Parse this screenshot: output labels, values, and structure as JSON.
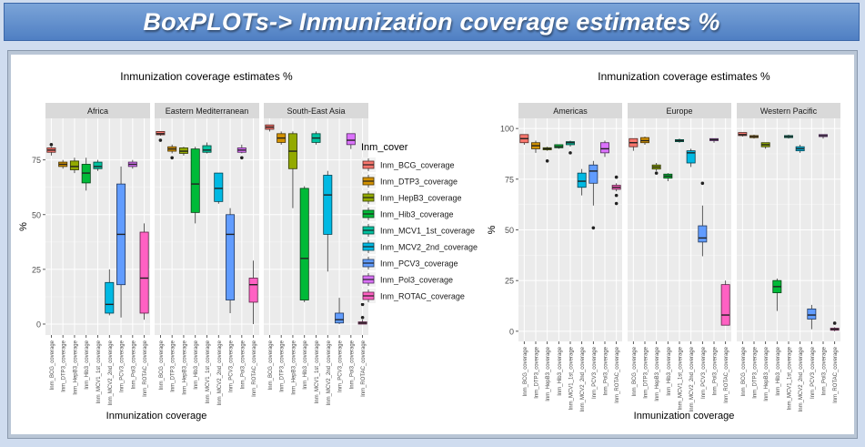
{
  "banner": {
    "title": "BoxPLOTs-> Inmunization coverage estimates %"
  },
  "colors": {
    "Inm_BCG_coverage": "#f8766d",
    "Inm_DTP3_coverage": "#d39200",
    "Inm_HepB3_coverage": "#93aa00",
    "Inm_Hib3_coverage": "#00ba38",
    "Inm_MCV1_1st_coverage": "#00c19f",
    "Inm_MCV2_2nd_coverage": "#00b9e3",
    "Inm_PCV3_coverage": "#619cff",
    "Inm_Pol3_coverage": "#db72fb",
    "Inm_ROTAC_coverage": "#ff61c3"
  },
  "legend": {
    "title": "Inm_cover",
    "items": [
      "Inm_BCG_coverage",
      "Inm_DTP3_coverage",
      "Inm_HepB3_coverage",
      "Inm_Hib3_coverage",
      "Inm_MCV1_1st_coverage",
      "Inm_MCV2_2nd_coverage",
      "Inm_PCV3_coverage",
      "Inm_Pol3_coverage",
      "Inm_ROTAC_coverage"
    ]
  },
  "chart_data": [
    {
      "type": "boxplot",
      "title": "Inmunization coverage estimates %",
      "xlabel": "Inmunization coverage",
      "ylabel": "%",
      "ylim": [
        -5,
        94
      ],
      "yticks": [
        0,
        25,
        50,
        75
      ],
      "grid": true,
      "legend_position": "right",
      "categories": [
        "Inm_BCG_coverage",
        "Inm_DTP3_coverage",
        "Inm_HepB3_coverage",
        "Inm_Hib3_coverage",
        "Inm_MCV1_1st_coverage",
        "Inm_MCV2_2nd_coverage",
        "Inm_PCV3_coverage",
        "Inm_Pol3_coverage",
        "Inm_ROTAC_coverage"
      ],
      "facets": [
        {
          "name": "Africa",
          "boxes": [
            {
              "min": 77,
              "q1": 78.5,
              "median": 79.5,
              "q3": 80.5,
              "max": 81,
              "outliers": [
                82
              ]
            },
            {
              "min": 71,
              "q1": 72,
              "median": 73,
              "q3": 74,
              "max": 75,
              "outliers": []
            },
            {
              "min": 69,
              "q1": 70.5,
              "median": 72,
              "q3": 74.5,
              "max": 76,
              "outliers": []
            },
            {
              "min": 61,
              "q1": 64.5,
              "median": 69,
              "q3": 73,
              "max": 76,
              "outliers": []
            },
            {
              "min": 70,
              "q1": 71,
              "median": 72,
              "q3": 74,
              "max": 75,
              "outliers": []
            },
            {
              "min": 4,
              "q1": 5,
              "median": 9,
              "q3": 19,
              "max": 25,
              "outliers": []
            },
            {
              "min": 3,
              "q1": 18,
              "median": 41,
              "q3": 64,
              "max": 72,
              "outliers": []
            },
            {
              "min": 71,
              "q1": 72,
              "median": 73,
              "q3": 74,
              "max": 75,
              "outliers": []
            },
            {
              "min": 2,
              "q1": 5,
              "median": 21,
              "q3": 42,
              "max": 46,
              "outliers": []
            }
          ]
        },
        {
          "name": "Eastern Mediterranean",
          "boxes": [
            {
              "min": 86,
              "q1": 86.5,
              "median": 87,
              "q3": 88,
              "max": 88,
              "outliers": [
                84
              ]
            },
            {
              "min": 78,
              "q1": 79,
              "median": 80,
              "q3": 81,
              "max": 82,
              "outliers": [
                76
              ]
            },
            {
              "min": 77,
              "q1": 78,
              "median": 79,
              "q3": 80.5,
              "max": 81,
              "outliers": []
            },
            {
              "min": 46,
              "q1": 51,
              "median": 64,
              "q3": 80,
              "max": 81,
              "outliers": []
            },
            {
              "min": 78,
              "q1": 78.5,
              "median": 79.5,
              "q3": 81.5,
              "max": 83,
              "outliers": []
            },
            {
              "min": 55,
              "q1": 56,
              "median": 62,
              "q3": 69,
              "max": 69,
              "outliers": []
            },
            {
              "min": 5,
              "q1": 11,
              "median": 41,
              "q3": 50,
              "max": 53,
              "outliers": []
            },
            {
              "min": 78,
              "q1": 78.5,
              "median": 79.5,
              "q3": 80.5,
              "max": 82,
              "outliers": [
                76
              ]
            },
            {
              "min": 0,
              "q1": 10,
              "median": 18,
              "q3": 21,
              "max": 29,
              "outliers": []
            }
          ]
        },
        {
          "name": "South-East Asia",
          "boxes": [
            {
              "min": 88,
              "q1": 89,
              "median": 90,
              "q3": 91,
              "max": 91,
              "outliers": []
            },
            {
              "min": 82,
              "q1": 83,
              "median": 85,
              "q3": 87,
              "max": 88,
              "outliers": []
            },
            {
              "min": 53,
              "q1": 71,
              "median": 79,
              "q3": 87,
              "max": 88,
              "outliers": []
            },
            {
              "min": 10,
              "q1": 11,
              "median": 30,
              "q3": 62,
              "max": 63,
              "outliers": []
            },
            {
              "min": 82,
              "q1": 83,
              "median": 85,
              "q3": 87,
              "max": 88,
              "outliers": []
            },
            {
              "min": 24,
              "q1": 41,
              "median": 59,
              "q3": 68,
              "max": 70,
              "outliers": []
            },
            {
              "min": 0,
              "q1": 0.5,
              "median": 2,
              "q3": 5,
              "max": 12,
              "outliers": []
            },
            {
              "min": 80,
              "q1": 82,
              "median": 84,
              "q3": 87,
              "max": 87,
              "outliers": []
            },
            {
              "min": 0,
              "q1": 0,
              "median": 0.5,
              "q3": 1,
              "max": 2,
              "outliers": [
                3,
                9
              ]
            }
          ]
        }
      ]
    },
    {
      "type": "boxplot",
      "title": "Inmunization coverage estimates %",
      "xlabel": "Inmunization coverage",
      "ylabel": "%",
      "ylim": [
        -5,
        105
      ],
      "yticks": [
        0,
        25,
        50,
        75,
        100
      ],
      "grid": true,
      "categories": [
        "Inm_BCG_coverage",
        "Inm_DTP3_coverage",
        "Inm_HepB3_coverage",
        "Inm_Hib3_coverage",
        "Inm_MCV1_1st_coverage",
        "Inm_MCV2_2nd_coverage",
        "Inm_PCV3_coverage",
        "Inm_Pol3_coverage",
        "Inm_ROTAC_coverage"
      ],
      "facets": [
        {
          "name": "Americas",
          "boxes": [
            {
              "min": 92,
              "q1": 93,
              "median": 95,
              "q3": 97,
              "max": 97,
              "outliers": []
            },
            {
              "min": 88,
              "q1": 90,
              "median": 91.5,
              "q3": 93,
              "max": 94,
              "outliers": []
            },
            {
              "min": 89,
              "q1": 89.5,
              "median": 90,
              "q3": 90.5,
              "max": 91,
              "outliers": [
                84
              ]
            },
            {
              "min": 90,
              "q1": 90.5,
              "median": 91,
              "q3": 92,
              "max": 92,
              "outliers": []
            },
            {
              "min": 91,
              "q1": 92,
              "median": 93,
              "q3": 93.5,
              "max": 94,
              "outliers": [
                88
              ]
            },
            {
              "min": 67,
              "q1": 71,
              "median": 74,
              "q3": 78,
              "max": 80,
              "outliers": []
            },
            {
              "min": 62,
              "q1": 73,
              "median": 79,
              "q3": 82,
              "max": 84,
              "outliers": [
                51
              ]
            },
            {
              "min": 86,
              "q1": 88,
              "median": 90,
              "q3": 93,
              "max": 94,
              "outliers": []
            },
            {
              "min": 69,
              "q1": 70,
              "median": 71,
              "q3": 72,
              "max": 73,
              "outliers": [
                76,
                63,
                67
              ]
            }
          ]
        },
        {
          "name": "Europe",
          "boxes": [
            {
              "min": 89,
              "q1": 91,
              "median": 93,
              "q3": 95,
              "max": 95,
              "outliers": []
            },
            {
              "min": 92,
              "q1": 93,
              "median": 94,
              "q3": 95.5,
              "max": 96,
              "outliers": []
            },
            {
              "min": 79,
              "q1": 80,
              "median": 81,
              "q3": 82,
              "max": 83,
              "outliers": [
                78
              ]
            },
            {
              "min": 74,
              "q1": 75.5,
              "median": 76.5,
              "q3": 77.5,
              "max": 78,
              "outliers": []
            },
            {
              "min": 93,
              "q1": 93.5,
              "median": 94,
              "q3": 94.5,
              "max": 95,
              "outliers": []
            },
            {
              "min": 81,
              "q1": 83,
              "median": 88,
              "q3": 89,
              "max": 90,
              "outliers": []
            },
            {
              "min": 37,
              "q1": 44,
              "median": 46,
              "q3": 52,
              "max": 62,
              "outliers": [
                73
              ]
            },
            {
              "min": 93,
              "q1": 94,
              "median": 94.5,
              "q3": 95,
              "max": 95,
              "outliers": []
            },
            {
              "min": 3,
              "q1": 3,
              "median": 8,
              "q3": 23,
              "max": 25,
              "outliers": []
            }
          ]
        },
        {
          "name": "Western Pacific",
          "boxes": [
            {
              "min": 96,
              "q1": 96.5,
              "median": 97,
              "q3": 98,
              "max": 98,
              "outliers": []
            },
            {
              "min": 95,
              "q1": 95.5,
              "median": 96,
              "q3": 96.5,
              "max": 97,
              "outliers": []
            },
            {
              "min": 90,
              "q1": 91,
              "median": 92,
              "q3": 93,
              "max": 93,
              "outliers": []
            },
            {
              "min": 10,
              "q1": 19,
              "median": 22,
              "q3": 25,
              "max": 26,
              "outliers": []
            },
            {
              "min": 95,
              "q1": 95.5,
              "median": 96,
              "q3": 96.5,
              "max": 97,
              "outliers": []
            },
            {
              "min": 88,
              "q1": 89,
              "median": 90,
              "q3": 91,
              "max": 92,
              "outliers": []
            },
            {
              "min": 1,
              "q1": 6,
              "median": 8,
              "q3": 11,
              "max": 13,
              "outliers": []
            },
            {
              "min": 95,
              "q1": 96,
              "median": 96.5,
              "q3": 97,
              "max": 97,
              "outliers": []
            },
            {
              "min": 0,
              "q1": 0.5,
              "median": 1,
              "q3": 1.5,
              "max": 2,
              "outliers": [
                4
              ]
            }
          ]
        }
      ]
    }
  ]
}
